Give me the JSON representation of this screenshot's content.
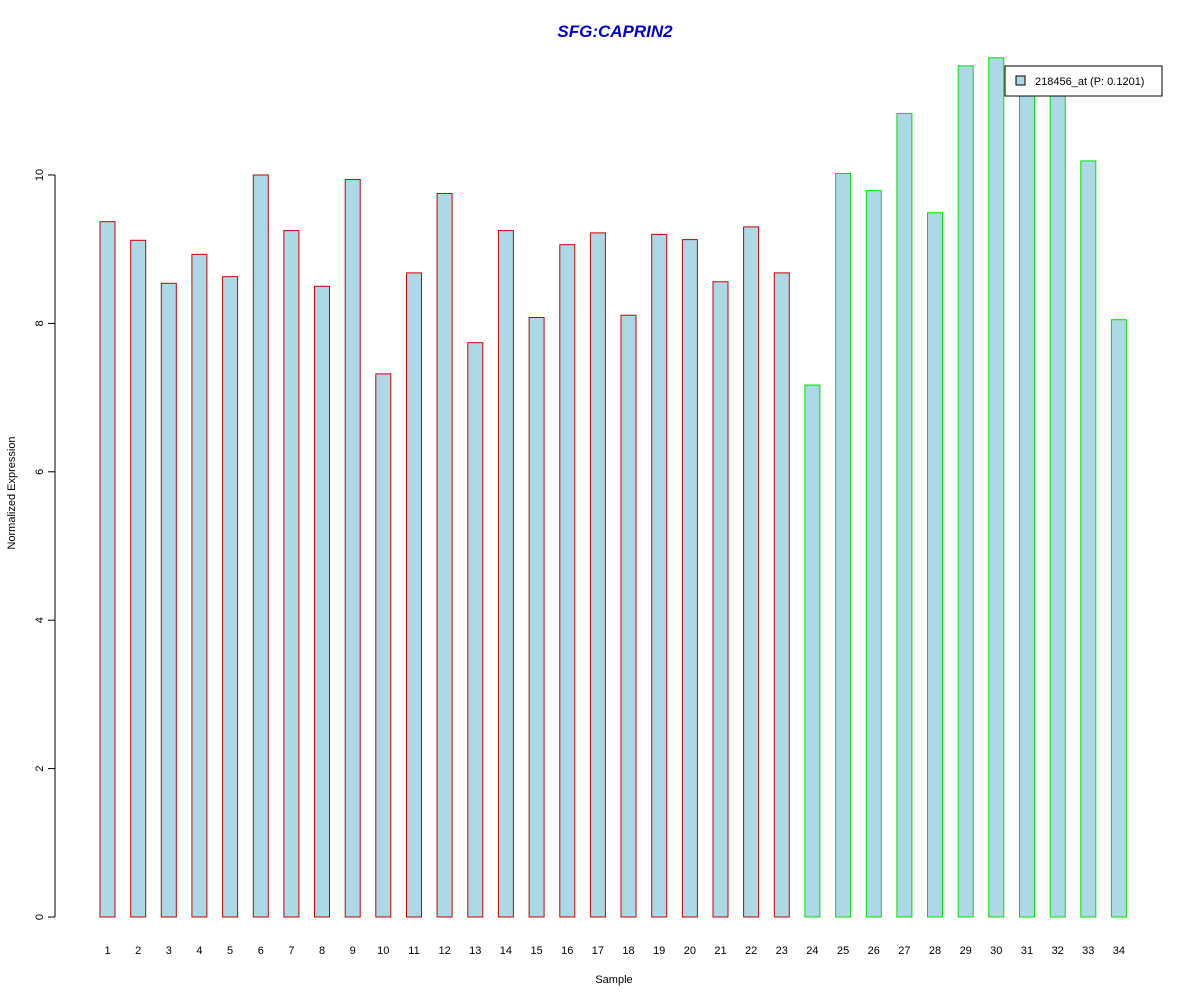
{
  "chart_data": {
    "type": "bar",
    "title": "SFG:CAPRIN2",
    "xlabel": "Sample",
    "ylabel": "Normalized Expression",
    "categories": [
      "1",
      "2",
      "3",
      "4",
      "5",
      "6",
      "7",
      "8",
      "9",
      "10",
      "11",
      "12",
      "13",
      "14",
      "15",
      "16",
      "17",
      "18",
      "19",
      "20",
      "21",
      "22",
      "23",
      "24",
      "25",
      "26",
      "27",
      "28",
      "29",
      "30",
      "31",
      "32",
      "33",
      "34"
    ],
    "values": [
      9.37,
      9.12,
      8.54,
      8.93,
      8.63,
      10.0,
      9.25,
      8.5,
      9.94,
      7.32,
      8.68,
      9.75,
      7.74,
      9.25,
      8.08,
      9.06,
      9.22,
      8.11,
      9.2,
      9.13,
      8.56,
      9.3,
      8.68,
      7.17,
      10.02,
      9.79,
      10.83,
      9.49,
      11.47,
      11.58,
      11.1,
      11.1,
      10.19,
      8.05
    ],
    "groups": [
      "red",
      "red",
      "red",
      "red",
      "red",
      "red",
      "red",
      "red",
      "red",
      "red",
      "red",
      "red",
      "red",
      "red",
      "red",
      "red",
      "red",
      "red",
      "red",
      "red",
      "red",
      "red",
      "red",
      "green",
      "green",
      "green",
      "green",
      "green",
      "green",
      "green",
      "green",
      "green",
      "green",
      "green"
    ],
    "yticks": [
      "0",
      "2",
      "4",
      "6",
      "8",
      "10"
    ],
    "ylim": [
      0,
      11.7
    ],
    "grid": false,
    "legend": {
      "label": "218456_at (P: 0.1201)",
      "placement": "top-right"
    },
    "colors": {
      "bar_fill": "#add8e6",
      "group_red": "#cc0000",
      "group_green": "#00e000",
      "title": "#0000cc"
    }
  }
}
